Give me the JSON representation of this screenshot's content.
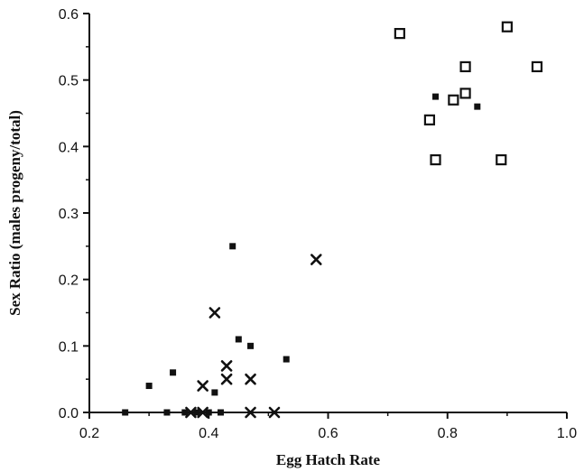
{
  "chart_data": {
    "type": "scatter",
    "title": "",
    "xlabel": "Egg Hatch Rate",
    "ylabel": "Sex Ratio (males progeny/total)",
    "xlim": [
      0.2,
      1.0
    ],
    "ylim": [
      0.0,
      0.6
    ],
    "xticks": [
      "0.2",
      "0.4",
      "0.6",
      "0.8",
      "1.0"
    ],
    "yticks": [
      "0.0",
      "0.1",
      "0.2",
      "0.3",
      "0.4",
      "0.5",
      "0.6"
    ],
    "grid": false,
    "legend": "none",
    "series": [
      {
        "marker": "filled-square",
        "points": [
          [
            0.26,
            0.0
          ],
          [
            0.3,
            0.04
          ],
          [
            0.33,
            0.0
          ],
          [
            0.34,
            0.06
          ],
          [
            0.36,
            0.0
          ],
          [
            0.38,
            0.0
          ],
          [
            0.4,
            0.0
          ],
          [
            0.41,
            0.03
          ],
          [
            0.42,
            0.0
          ],
          [
            0.44,
            0.25
          ],
          [
            0.45,
            0.11
          ],
          [
            0.47,
            0.1
          ],
          [
            0.53,
            0.08
          ],
          [
            0.78,
            0.475
          ],
          [
            0.85,
            0.46
          ]
        ]
      },
      {
        "marker": "x",
        "points": [
          [
            0.37,
            0.0
          ],
          [
            0.39,
            0.0
          ],
          [
            0.39,
            0.04
          ],
          [
            0.41,
            0.15
          ],
          [
            0.43,
            0.07
          ],
          [
            0.43,
            0.05
          ],
          [
            0.47,
            0.05
          ],
          [
            0.47,
            0.0
          ],
          [
            0.51,
            0.0
          ],
          [
            0.58,
            0.23
          ]
        ]
      },
      {
        "marker": "open-square",
        "points": [
          [
            0.72,
            0.57
          ],
          [
            0.77,
            0.44
          ],
          [
            0.78,
            0.38
          ],
          [
            0.81,
            0.47
          ],
          [
            0.83,
            0.52
          ],
          [
            0.83,
            0.48
          ],
          [
            0.89,
            0.38
          ],
          [
            0.9,
            0.58
          ],
          [
            0.95,
            0.52
          ]
        ]
      }
    ]
  }
}
